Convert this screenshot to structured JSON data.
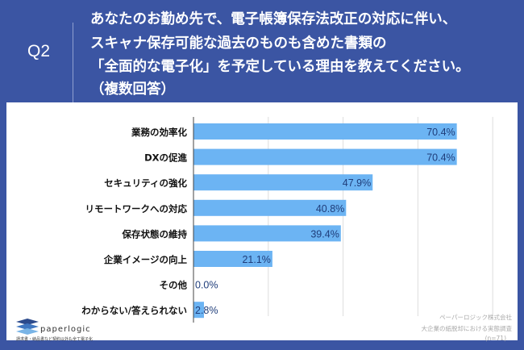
{
  "question": {
    "number": "Q2",
    "lines": [
      "あなたのお勤め先で、電子帳簿保存法改正の対応に伴い、",
      "スキャナ保存可能な過去のものも含めた書類の",
      "「全面的な電子化」を予定している理由を教えてください。",
      "（複数回答）"
    ]
  },
  "chart_data": {
    "type": "bar",
    "orientation": "horizontal",
    "categories": [
      "業務の効率化",
      "DXの促進",
      "セキュリティの強化",
      "リモートワークへの対応",
      "保存状態の維持",
      "企業イメージの向上",
      "その他",
      "わからない/答えられない"
    ],
    "values": [
      70.4,
      70.4,
      47.9,
      40.8,
      39.4,
      21.1,
      0.0,
      2.8
    ],
    "labels": [
      "70.4%",
      "70.4%",
      "47.9%",
      "40.8%",
      "39.4%",
      "21.1%",
      "0.0%",
      "2.8%"
    ],
    "xlim": [
      0,
      80
    ],
    "grid": true,
    "bar_color": "#6cb4f3"
  },
  "logo": {
    "name": "paperlogic",
    "tagline": "請求書・納品書など契約以外も全て電子化"
  },
  "source": [
    "ペーパーロジック株式会社",
    "大企業の紙脱却における実態調査",
    "(n=71)"
  ]
}
